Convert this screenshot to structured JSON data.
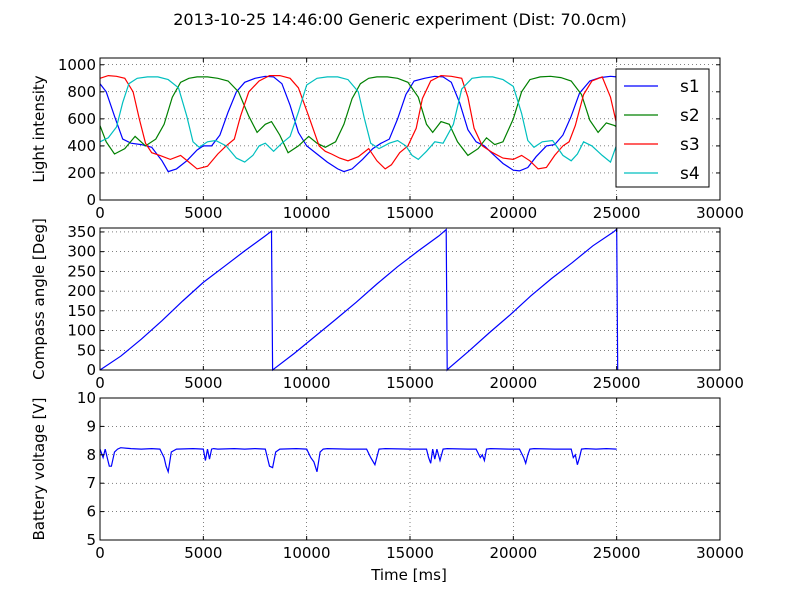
{
  "figure": {
    "title": "2013-10-25 14:46:00 Generic experiment (Dist: 70.0cm)",
    "xlabel": "Time [ms]"
  },
  "chart_data": [
    {
      "type": "line",
      "ylabel": "Light intensity",
      "xlim": [
        0,
        30000
      ],
      "ylim": [
        0,
        1050
      ],
      "xticks": [
        0,
        5000,
        10000,
        15000,
        20000,
        25000,
        30000
      ],
      "yticks": [
        0,
        200,
        400,
        600,
        800,
        1000
      ],
      "grid": true,
      "legend": "right",
      "series": [
        {
          "name": "s1",
          "color": "#0000ff",
          "x": [
            0,
            300,
            700,
            1100,
            1500,
            2000,
            2500,
            3000,
            3300,
            3700,
            4200,
            4700,
            5000,
            5400,
            5800,
            6200,
            6600,
            7000,
            7500,
            8000,
            8400,
            8800,
            9200,
            9600,
            10000,
            10500,
            11000,
            11500,
            11800,
            12200,
            12700,
            13200,
            13600,
            14000,
            14400,
            14800,
            15200,
            15700,
            16200,
            16600,
            17000,
            17400,
            17800,
            18200,
            18600,
            19000,
            19500,
            20000,
            20300,
            20700,
            21100,
            21600,
            22000,
            22400,
            22800,
            23200,
            23700,
            24200,
            24700,
            25000
          ],
          "y": [
            860,
            800,
            620,
            450,
            420,
            410,
            390,
            290,
            210,
            230,
            290,
            370,
            400,
            400,
            480,
            650,
            800,
            870,
            900,
            915,
            910,
            860,
            700,
            500,
            400,
            340,
            280,
            230,
            210,
            230,
            300,
            380,
            420,
            450,
            600,
            780,
            880,
            900,
            915,
            910,
            870,
            720,
            520,
            430,
            400,
            340,
            270,
            220,
            215,
            240,
            320,
            400,
            410,
            480,
            620,
            790,
            880,
            905,
            915,
            910
          ]
        },
        {
          "name": "s2",
          "color": "#008000",
          "x": [
            0,
            300,
            700,
            1200,
            1700,
            2200,
            2700,
            3100,
            3500,
            3900,
            4300,
            4700,
            5200,
            5700,
            6200,
            6700,
            7200,
            7600,
            8000,
            8300,
            8700,
            9100,
            9600,
            10100,
            10500,
            10900,
            11400,
            11800,
            12200,
            12600,
            13000,
            13400,
            13900,
            14400,
            14900,
            15400,
            15800,
            16100,
            16500,
            16900,
            17300,
            17800,
            18300,
            18700,
            19100,
            19500,
            20000,
            20400,
            20800,
            21300,
            21800,
            22300,
            22800,
            23300,
            23700,
            24100,
            24500,
            24900,
            25000
          ],
          "y": [
            550,
            430,
            340,
            380,
            470,
            400,
            450,
            560,
            760,
            870,
            900,
            910,
            910,
            900,
            880,
            800,
            620,
            500,
            560,
            580,
            480,
            350,
            400,
            470,
            420,
            390,
            430,
            560,
            750,
            860,
            900,
            910,
            910,
            900,
            870,
            760,
            560,
            500,
            580,
            560,
            430,
            330,
            380,
            460,
            410,
            430,
            600,
            800,
            890,
            910,
            915,
            905,
            880,
            780,
            590,
            500,
            570,
            550,
            540
          ]
        },
        {
          "name": "s3",
          "color": "#ff0000",
          "x": [
            0,
            400,
            800,
            1200,
            1600,
            1900,
            2200,
            2500,
            2900,
            3400,
            3900,
            4300,
            4700,
            5200,
            5700,
            6100,
            6500,
            6800,
            7200,
            7700,
            8200,
            8700,
            9200,
            9600,
            10100,
            10600,
            10900,
            11200,
            11600,
            12000,
            12500,
            13000,
            13400,
            13800,
            14100,
            14500,
            14900,
            15300,
            15600,
            16000,
            16500,
            17000,
            17500,
            17800,
            18100,
            18500,
            19000,
            19500,
            20000,
            20400,
            20800,
            21200,
            21600,
            22000,
            22400,
            22700,
            23000,
            23400,
            23800,
            24300,
            24700,
            25000
          ],
          "y": [
            900,
            920,
            915,
            900,
            800,
            600,
            420,
            350,
            330,
            300,
            330,
            280,
            230,
            250,
            340,
            400,
            450,
            620,
            800,
            880,
            920,
            920,
            900,
            830,
            620,
            400,
            360,
            340,
            310,
            290,
            320,
            380,
            290,
            230,
            260,
            350,
            400,
            530,
            750,
            880,
            920,
            915,
            900,
            760,
            530,
            400,
            350,
            310,
            300,
            330,
            290,
            230,
            240,
            330,
            400,
            430,
            550,
            780,
            880,
            910,
            760,
            560
          ]
        },
        {
          "name": "s4",
          "color": "#00bfbf",
          "x": [
            0,
            400,
            800,
            1100,
            1400,
            1800,
            2300,
            2800,
            3300,
            3800,
            4200,
            4500,
            4800,
            5200,
            5600,
            6100,
            6600,
            7000,
            7400,
            7700,
            8000,
            8400,
            8800,
            9200,
            9600,
            10000,
            10500,
            11000,
            11500,
            12000,
            12500,
            12800,
            13100,
            13500,
            14000,
            14400,
            14800,
            15100,
            15400,
            15800,
            16200,
            16600,
            17100,
            17500,
            18000,
            18500,
            19000,
            19500,
            20000,
            20400,
            20700,
            21000,
            21400,
            21900,
            22400,
            22800,
            23100,
            23400,
            23800,
            24300,
            24700,
            25000
          ],
          "y": [
            430,
            460,
            540,
            720,
            860,
            900,
            910,
            910,
            890,
            830,
            620,
            430,
            390,
            430,
            440,
            400,
            310,
            280,
            330,
            400,
            420,
            360,
            420,
            470,
            650,
            850,
            900,
            910,
            910,
            890,
            800,
            600,
            420,
            380,
            420,
            440,
            400,
            330,
            300,
            360,
            430,
            420,
            560,
            820,
            900,
            910,
            910,
            890,
            840,
            640,
            440,
            390,
            430,
            440,
            330,
            290,
            340,
            430,
            400,
            330,
            280,
            410
          ]
        }
      ]
    },
    {
      "type": "line",
      "ylabel": "Compass angle [Deg]",
      "xlim": [
        0,
        30000
      ],
      "ylim": [
        0,
        360
      ],
      "xticks": [
        0,
        5000,
        10000,
        15000,
        20000,
        25000,
        30000
      ],
      "yticks": [
        0,
        50,
        100,
        150,
        200,
        250,
        300,
        350
      ],
      "grid": true,
      "series": [
        {
          "color": "#0000ff",
          "x": [
            0,
            1000,
            2000,
            3000,
            4000,
            5000,
            6000,
            7000,
            8000,
            8300,
            8350,
            8400,
            9400,
            10400,
            11400,
            12400,
            13400,
            14400,
            15400,
            16400,
            16750,
            16800,
            16850,
            17850,
            18850,
            19850,
            20850,
            21850,
            22850,
            23850,
            24850,
            25000,
            25050
          ],
          "y": [
            0,
            35,
            78,
            125,
            175,
            222,
            262,
            302,
            340,
            352,
            0,
            2,
            42,
            85,
            128,
            172,
            218,
            262,
            302,
            340,
            356,
            0,
            3,
            48,
            95,
            140,
            188,
            232,
            272,
            315,
            350,
            357,
            0
          ]
        }
      ]
    },
    {
      "type": "line",
      "ylabel": "Battery voltage [V]",
      "xlim": [
        0,
        30000
      ],
      "ylim": [
        5,
        10
      ],
      "xticks": [
        0,
        5000,
        10000,
        15000,
        20000,
        25000,
        30000
      ],
      "yticks": [
        5,
        6,
        7,
        8,
        9,
        10
      ],
      "grid": true,
      "series": [
        {
          "color": "#0000ff",
          "x": [
            0,
            150,
            250,
            350,
            450,
            550,
            700,
            850,
            1000,
            1500,
            2000,
            2500,
            2900,
            3100,
            3200,
            3300,
            3450,
            3700,
            4500,
            5000,
            5100,
            5200,
            5300,
            5400,
            5500,
            5700,
            6500,
            7000,
            7500,
            8000,
            8100,
            8200,
            8350,
            8500,
            8700,
            9500,
            10000,
            10200,
            10350,
            10500,
            10650,
            10800,
            11000,
            12000,
            12900,
            13100,
            13300,
            13500,
            13800,
            15000,
            15800,
            15900,
            16000,
            16100,
            16200,
            16300,
            16450,
            16600,
            16800,
            17800,
            18200,
            18400,
            18500,
            18600,
            18700,
            18900,
            19800,
            20300,
            20500,
            20600,
            20700,
            20800,
            21000,
            22000,
            22800,
            22900,
            23000,
            23100,
            23200,
            23300,
            23500,
            24000,
            24500,
            25000
          ],
          "y": [
            8.2,
            7.9,
            8.2,
            7.9,
            7.6,
            7.6,
            8.1,
            8.2,
            8.25,
            8.22,
            8.2,
            8.22,
            8.2,
            7.9,
            7.6,
            7.4,
            8.1,
            8.2,
            8.22,
            8.2,
            7.8,
            8.2,
            7.85,
            8.2,
            8.22,
            8.2,
            8.22,
            8.2,
            8.22,
            8.2,
            7.9,
            7.6,
            7.55,
            8.1,
            8.2,
            8.22,
            8.2,
            7.9,
            7.75,
            7.4,
            8.1,
            8.2,
            8.22,
            8.2,
            8.2,
            7.9,
            7.65,
            8.2,
            8.22,
            8.2,
            8.2,
            7.9,
            7.7,
            8.2,
            7.85,
            8.2,
            7.8,
            8.2,
            8.22,
            8.2,
            8.2,
            7.9,
            8.0,
            7.8,
            8.2,
            8.22,
            8.2,
            8.2,
            7.9,
            7.7,
            8.0,
            8.2,
            8.22,
            8.2,
            8.2,
            7.9,
            8.0,
            7.65,
            7.9,
            8.2,
            8.22,
            8.2,
            8.22,
            8.2
          ]
        }
      ]
    }
  ]
}
